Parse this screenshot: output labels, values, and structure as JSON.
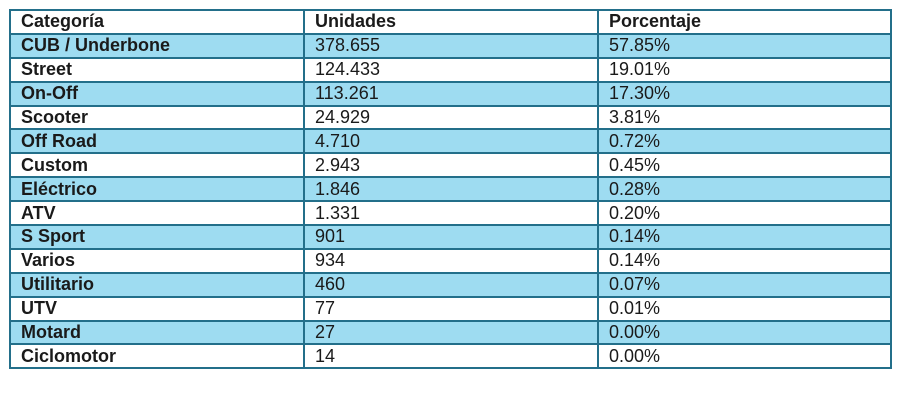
{
  "colors": {
    "border": "#236f8a",
    "highlight_row": "#9edcf1"
  },
  "table": {
    "headers": [
      "Categoría",
      "Unidades",
      "Porcentaje"
    ],
    "rows": [
      [
        "CUB / Underbone",
        "378.655",
        "57.85%"
      ],
      [
        "Street",
        "124.433",
        "19.01%"
      ],
      [
        "On-Off",
        "113.261",
        "17.30%"
      ],
      [
        "Scooter",
        "24.929",
        "3.81%"
      ],
      [
        "Off Road",
        "4.710",
        "0.72%"
      ],
      [
        "Custom",
        "2.943",
        "0.45%"
      ],
      [
        "Eléctrico",
        "1.846",
        "0.28%"
      ],
      [
        "ATV",
        "1.331",
        "0.20%"
      ],
      [
        "S Sport",
        "901",
        "0.14%"
      ],
      [
        "Varios",
        "934",
        "0.14%"
      ],
      [
        "Utilitario",
        "460",
        "0.07%"
      ],
      [
        "UTV",
        "77",
        "0.01%"
      ],
      [
        "Motard",
        "27",
        "0.00%"
      ],
      [
        "Ciclomotor",
        "14",
        "0.00%"
      ]
    ]
  }
}
